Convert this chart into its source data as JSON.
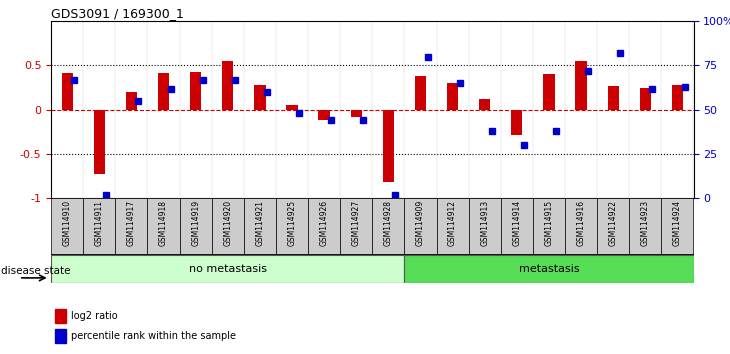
{
  "title": "GDS3091 / 169300_1",
  "samples": [
    "GSM114910",
    "GSM114911",
    "GSM114917",
    "GSM114918",
    "GSM114919",
    "GSM114920",
    "GSM114921",
    "GSM114925",
    "GSM114926",
    "GSM114927",
    "GSM114928",
    "GSM114909",
    "GSM114912",
    "GSM114913",
    "GSM114914",
    "GSM114915",
    "GSM114916",
    "GSM114922",
    "GSM114923",
    "GSM114924"
  ],
  "log2_ratio": [
    0.42,
    -0.73,
    0.2,
    0.42,
    0.43,
    0.55,
    0.28,
    0.05,
    -0.12,
    -0.08,
    -0.82,
    0.38,
    0.3,
    0.12,
    -0.28,
    0.4,
    0.55,
    0.27,
    0.25,
    0.28
  ],
  "percentile": [
    67,
    2,
    55,
    62,
    67,
    67,
    60,
    48,
    44,
    44,
    2,
    80,
    65,
    38,
    30,
    38,
    72,
    82,
    62,
    63
  ],
  "no_metastasis_count": 11,
  "metastasis_count": 9,
  "bar_color_red": "#cc0000",
  "bar_color_blue": "#0000cc",
  "left_ylim": [
    -1,
    1
  ],
  "left_yticks": [
    -1,
    -0.5,
    0,
    0.5
  ],
  "left_yticklabels": [
    "-1",
    "-0.5",
    "0",
    "0.5"
  ],
  "right_ylim": [
    0,
    100
  ],
  "right_yticks": [
    0,
    25,
    50,
    75,
    100
  ],
  "right_yticklabels": [
    "0",
    "25",
    "50",
    "75",
    "100%"
  ],
  "no_meta_color": "#ccffcc",
  "meta_color": "#55dd55",
  "label_bg_color": "#cccccc",
  "legend_red_label": "log2 ratio",
  "legend_blue_label": "percentile rank within the sample",
  "disease_state_label": "disease state",
  "no_metastasis_label": "no metastasis",
  "metastasis_label": "metastasis"
}
